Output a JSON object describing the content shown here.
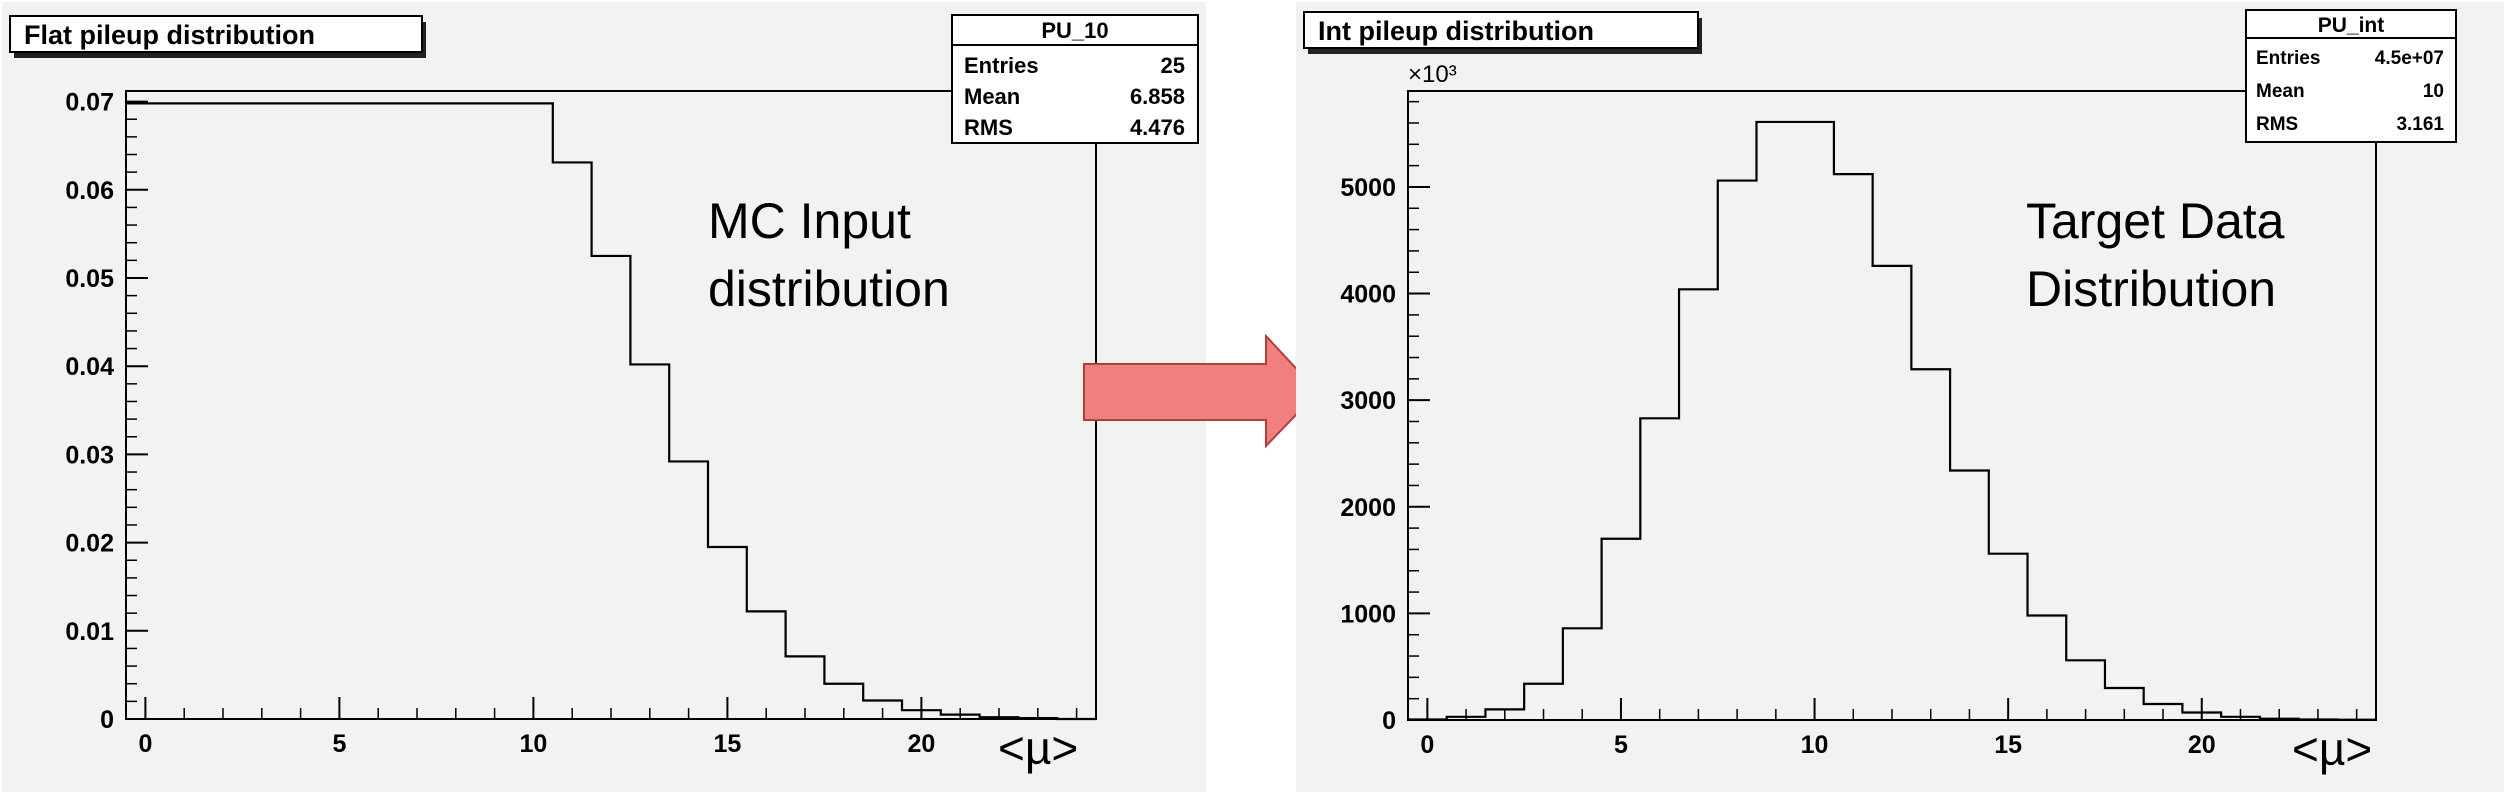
{
  "chart_data": [
    {
      "type": "histogram",
      "title": "Flat pileup distribution",
      "xlabel": "<µ>",
      "ylabel": "",
      "xlim": [
        -0.5,
        24.5
      ],
      "ylim": [
        0,
        0.0712
      ],
      "x_ticks": [
        "0",
        "5",
        "10",
        "15",
        "20"
      ],
      "y_ticks": [
        "0",
        "0.01",
        "0.02",
        "0.03",
        "0.04",
        "0.05",
        "0.06",
        "0.07"
      ],
      "bin_low_edges": [
        -0.5,
        0.5,
        1.5,
        2.5,
        3.5,
        4.5,
        5.5,
        6.5,
        7.5,
        8.5,
        9.5,
        10.5,
        11.5,
        12.5,
        13.5,
        14.5,
        15.5,
        16.5,
        17.5,
        18.5,
        19.5,
        20.5,
        21.5,
        22.5,
        23.5
      ],
      "values": [
        0.0698,
        0.0698,
        0.0698,
        0.0698,
        0.0698,
        0.0698,
        0.0698,
        0.0698,
        0.0698,
        0.0698,
        0.0698,
        0.0631,
        0.0525,
        0.0402,
        0.0292,
        0.0195,
        0.0122,
        0.0071,
        0.004,
        0.0021,
        0.001,
        0.0005,
        0.0002,
        0.0001,
        0.0
      ],
      "stats_box": {
        "name": "PU_10",
        "rows": [
          {
            "label": "Entries",
            "value": "25"
          },
          {
            "label": "Mean",
            "value": "6.858"
          },
          {
            "label": "RMS",
            "value": "4.476"
          }
        ]
      },
      "annotation": [
        "MC Input",
        "distribution"
      ],
      "grid": false
    },
    {
      "type": "histogram",
      "title": "Int pileup distribution",
      "xlabel": "<µ>",
      "ylabel": "",
      "y_multiplier": "×10³",
      "xlim": [
        -0.5,
        24.5
      ],
      "ylim": [
        0,
        5900
      ],
      "x_ticks": [
        "0",
        "5",
        "10",
        "15",
        "20"
      ],
      "y_ticks": [
        "0",
        "1000",
        "2000",
        "3000",
        "4000",
        "5000"
      ],
      "bin_low_edges": [
        -0.5,
        0.5,
        1.5,
        2.5,
        3.5,
        4.5,
        5.5,
        6.5,
        7.5,
        8.5,
        9.5,
        10.5,
        11.5,
        12.5,
        13.5,
        14.5,
        15.5,
        16.5,
        17.5,
        18.5,
        19.5,
        20.5,
        21.5,
        22.5,
        23.5
      ],
      "values": [
        5,
        30,
        100,
        340,
        860,
        1700,
        2830,
        4040,
        5060,
        5610,
        5610,
        5120,
        4260,
        3290,
        2340,
        1560,
        980,
        560,
        300,
        150,
        70,
        30,
        12,
        5,
        2
      ],
      "stats_box": {
        "name": "PU_int",
        "rows": [
          {
            "label": "Entries",
            "value": "4.5e+07"
          },
          {
            "label": "Mean",
            "value": "10"
          },
          {
            "label": "RMS",
            "value": "3.161"
          }
        ]
      },
      "annotation": [
        "Target Data",
        "Distribution"
      ],
      "grid": false
    }
  ],
  "arrow_color": "#f08080",
  "frame_color": "#000000",
  "pad_color": "#f2f2f2"
}
